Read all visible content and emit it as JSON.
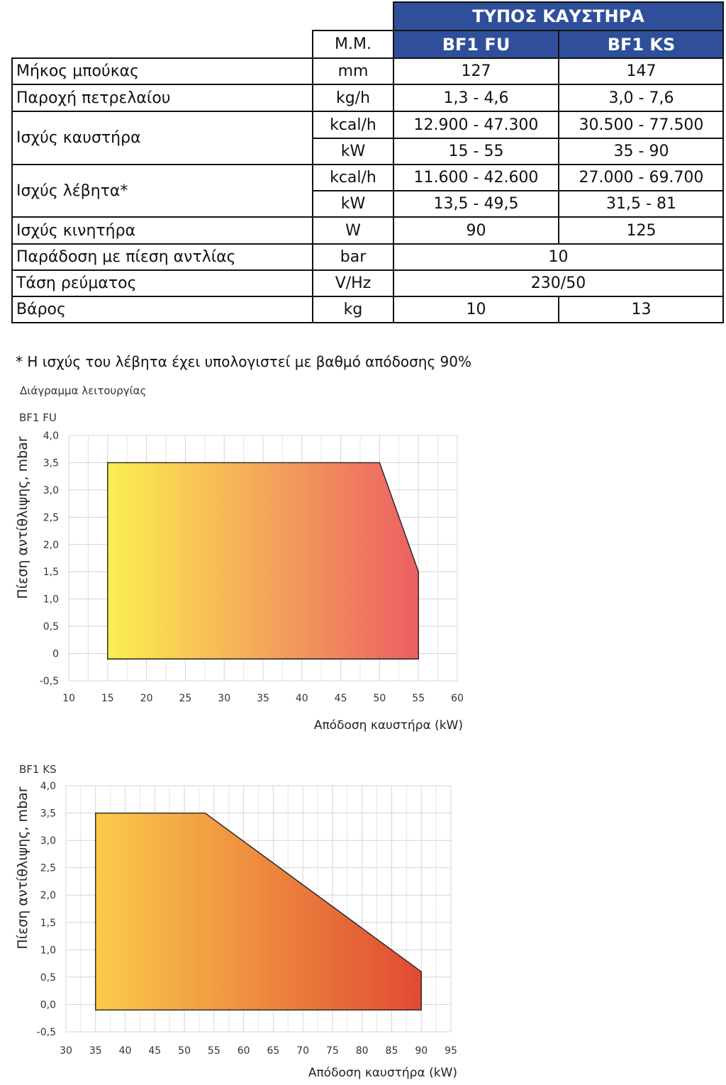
{
  "table": {
    "group_header": "ΤΥΠΟΣ ΚΑΥΣΤΗΡΑ",
    "unit_header": "Μ.Μ.",
    "models": [
      "BF1 FU",
      "BF1 KS"
    ],
    "rows": [
      {
        "label": "Μήκος μπούκας",
        "unit": "mm",
        "values": [
          "127",
          "147"
        ]
      },
      {
        "label": "Παροχή πετρελαίου",
        "unit": "kg/h",
        "values": [
          "1,3 - 4,6",
          "3,0 - 7,6"
        ]
      },
      {
        "label": "Ισχύς καυστήρα",
        "unit": "kcal/h",
        "values": [
          "12.900 - 47.300",
          "30.500 - 77.500"
        ]
      },
      {
        "label": "",
        "unit": "kW",
        "values": [
          "15 - 55",
          "35 - 90"
        ]
      },
      {
        "label": "Ισχύς λέβητα*",
        "unit": "kcal/h",
        "values": [
          "11.600 - 42.600",
          "27.000 - 69.700"
        ]
      },
      {
        "label": "",
        "unit": "kW",
        "values": [
          "13,5 - 49,5",
          "31,5 - 81"
        ]
      },
      {
        "label": "Ισχύς κινητήρα",
        "unit": "W",
        "values": [
          "90",
          "125"
        ]
      },
      {
        "label": "Παράδοση με πίεση αντλίας",
        "unit": "bar",
        "values": [
          "10"
        ]
      },
      {
        "label": "Τάση ρεύματος",
        "unit": "V/Hz",
        "values": [
          "230/50"
        ]
      },
      {
        "label": "Βάρος",
        "unit": "kg",
        "values": [
          "10",
          "13"
        ]
      }
    ]
  },
  "footnote": "* Η ισχύς του λέβητα έχει υπολογιστεί με βαθμό απόδοσης 90%",
  "diagram_title": "Διάγραμμα λειτουργίας",
  "chart_data": [
    {
      "type": "area",
      "title": "BF1 FU",
      "xlabel": "Απόδοση καυστήρα (kW)",
      "ylabel": "Πίεση αντίθλιψης, mbar",
      "xlim": [
        10,
        60
      ],
      "ylim": [
        -0.5,
        4.0
      ],
      "xticks": [
        "10",
        "15",
        "20",
        "25",
        "30",
        "35",
        "40",
        "45",
        "50",
        "55",
        "60"
      ],
      "yticks": [
        "-0,5",
        "0",
        "0,5",
        "1,0",
        "1,5",
        "2,0",
        "2,5",
        "3,0",
        "3,5",
        "4,0"
      ],
      "grid": true,
      "polygon": {
        "x": [
          15,
          15,
          50,
          55,
          55
        ],
        "y": [
          -0.1,
          3.5,
          3.5,
          1.5,
          -0.1
        ]
      },
      "colors": {
        "start": "#fbee4f",
        "end": "#ec5f63"
      }
    },
    {
      "type": "area",
      "title": "BF1 KS",
      "xlabel": "Απόδοση καυστήρα (kW)",
      "ylabel": "Πίεση αντίθλιψης, mbar",
      "xlim": [
        30,
        95
      ],
      "ylim": [
        -0.5,
        4.0
      ],
      "xticks": [
        "30",
        "35",
        "40",
        "45",
        "50",
        "55",
        "60",
        "65",
        "70",
        "75",
        "80",
        "85",
        "90",
        "95"
      ],
      "yticks": [
        "-0,5",
        "0,0",
        "0,5",
        "1,0",
        "1,5",
        "2,0",
        "2,5",
        "3,0",
        "3,5",
        "4,0"
      ],
      "grid": true,
      "polygon": {
        "x": [
          35,
          35,
          53.5,
          90,
          90
        ],
        "y": [
          -0.1,
          3.5,
          3.5,
          0.6,
          -0.1
        ]
      },
      "colors": {
        "start": "#fbcb4b",
        "end": "#e04a33"
      }
    }
  ]
}
